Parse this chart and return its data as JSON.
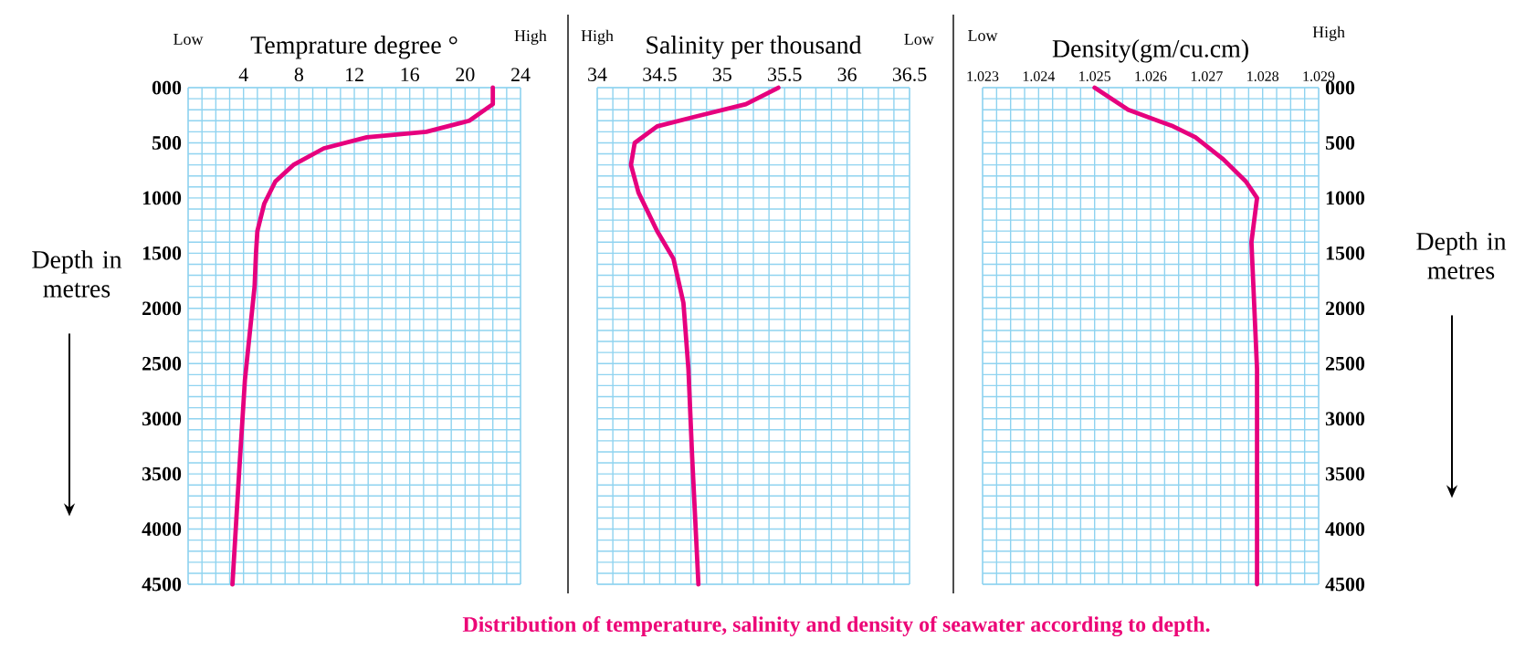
{
  "chart_data": [
    {
      "type": "line",
      "xlabel": "Temprature degree °",
      "ylabel": "Depth in metres",
      "annotations": [
        "Low",
        "High"
      ],
      "xlim": [
        0,
        24
      ],
      "xticks": [
        {
          "value": 0,
          "label": null
        },
        {
          "value": 1,
          "label": null
        },
        {
          "value": 2,
          "label": null
        },
        {
          "value": 3,
          "label": null
        },
        4,
        {
          "value": 5,
          "label": null
        },
        {
          "value": 6,
          "label": null
        },
        {
          "value": 7,
          "label": null
        },
        8,
        {
          "value": 9,
          "label": null
        },
        {
          "value": 10,
          "label": null
        },
        {
          "value": 11,
          "label": null
        },
        12,
        {
          "value": 13,
          "label": null
        },
        {
          "value": 14,
          "label": null
        },
        {
          "value": 15,
          "label": null
        },
        16,
        {
          "value": 17,
          "label": null
        },
        {
          "value": 18,
          "label": null
        },
        {
          "value": 19,
          "label": null
        },
        20,
        {
          "value": 21,
          "label": null
        },
        {
          "value": 22,
          "label": null
        },
        {
          "value": 23,
          "label": null
        },
        24
      ],
      "ylim": [
        4500,
        0
      ],
      "yticks": [
        {
          "value": 0,
          "label": "000"
        },
        {
          "value": 100,
          "label": null
        },
        {
          "value": 200,
          "label": null
        },
        {
          "value": 300,
          "label": null
        },
        {
          "value": 400,
          "label": null
        },
        500,
        {
          "value": 600,
          "label": null
        },
        {
          "value": 700,
          "label": null
        },
        {
          "value": 800,
          "label": null
        },
        {
          "value": 900,
          "label": null
        },
        1000,
        {
          "value": 1100,
          "label": null
        },
        {
          "value": 1200,
          "label": null
        },
        {
          "value": 1300,
          "label": null
        },
        {
          "value": 1400,
          "label": null
        },
        1500,
        {
          "value": 1600,
          "label": null
        },
        {
          "value": 1700,
          "label": null
        },
        {
          "value": 1800,
          "label": null
        },
        {
          "value": 1900,
          "label": null
        },
        2000,
        {
          "value": 2100,
          "label": null
        },
        {
          "value": 2200,
          "label": null
        },
        {
          "value": 2300,
          "label": null
        },
        {
          "value": 2400,
          "label": null
        },
        2500,
        {
          "value": 2600,
          "label": null
        },
        {
          "value": 2700,
          "label": null
        },
        {
          "value": 2800,
          "label": null
        },
        {
          "value": 2900,
          "label": null
        },
        3000,
        {
          "value": 3100,
          "label": null
        },
        {
          "value": 3200,
          "label": null
        },
        {
          "value": 3300,
          "label": null
        },
        {
          "value": 3400,
          "label": null
        },
        3500,
        {
          "value": 3600,
          "label": null
        },
        {
          "value": 3700,
          "label": null
        },
        {
          "value": 3800,
          "label": null
        },
        {
          "value": 3900,
          "label": null
        },
        4000,
        {
          "value": 4100,
          "label": null
        },
        {
          "value": 4200,
          "label": null
        },
        {
          "value": 4300,
          "label": null
        },
        {
          "value": 4400,
          "label": null
        },
        4500
      ],
      "grid": true,
      "series": [
        {
          "color": "#e6007e",
          "x": [
            22.0,
            22.0,
            20.3,
            17.2,
            12.9,
            9.8,
            7.6,
            6.3,
            5.5,
            5.0,
            4.9,
            4.8,
            4.1,
            3.7,
            3.2
          ],
          "values": [
            0,
            150,
            300,
            400,
            450,
            550,
            700,
            850,
            1050,
            1300,
            1500,
            1800,
            2650,
            3450,
            4500
          ]
        }
      ]
    },
    {
      "type": "line",
      "xlabel": "Salinity per thousand",
      "annotations": [
        "High",
        "Low",
        "Distribution of temperature, salinity and density of seawater according to depth."
      ],
      "xlim": [
        34,
        36.5
      ],
      "xticks": [
        34,
        {
          "value": 34.125,
          "label": null
        },
        {
          "value": 34.25,
          "label": null
        },
        {
          "value": 34.375,
          "label": null
        },
        34.5,
        {
          "value": 34.625,
          "label": null
        },
        {
          "value": 34.75,
          "label": null
        },
        {
          "value": 34.875,
          "label": null
        },
        35,
        {
          "value": 35.125,
          "label": null
        },
        {
          "value": 35.25,
          "label": null
        },
        {
          "value": 35.375,
          "label": null
        },
        35.5,
        {
          "value": 35.625,
          "label": null
        },
        {
          "value": 35.75,
          "label": null
        },
        {
          "value": 35.875,
          "label": null
        },
        36,
        {
          "value": 36.125,
          "label": null
        },
        {
          "value": 36.25,
          "label": null
        },
        {
          "value": 36.375,
          "label": null
        },
        36.5
      ],
      "ylim": [
        4500,
        0
      ],
      "yticks": [
        0,
        {
          "value": 100,
          "label": null
        },
        {
          "value": 200,
          "label": null
        },
        {
          "value": 300,
          "label": null
        },
        {
          "value": 400,
          "label": null
        },
        500,
        {
          "value": 600,
          "label": null
        },
        {
          "value": 700,
          "label": null
        },
        {
          "value": 800,
          "label": null
        },
        {
          "value": 900,
          "label": null
        },
        1000,
        {
          "value": 1100,
          "label": null
        },
        {
          "value": 1200,
          "label": null
        },
        {
          "value": 1300,
          "label": null
        },
        {
          "value": 1400,
          "label": null
        },
        1500,
        {
          "value": 1600,
          "label": null
        },
        {
          "value": 1700,
          "label": null
        },
        {
          "value": 1800,
          "label": null
        },
        {
          "value": 1900,
          "label": null
        },
        2000,
        {
          "value": 2100,
          "label": null
        },
        {
          "value": 2200,
          "label": null
        },
        {
          "value": 2300,
          "label": null
        },
        {
          "value": 2400,
          "label": null
        },
        2500,
        {
          "value": 2600,
          "label": null
        },
        {
          "value": 2700,
          "label": null
        },
        {
          "value": 2800,
          "label": null
        },
        {
          "value": 2900,
          "label": null
        },
        3000,
        {
          "value": 3100,
          "label": null
        },
        {
          "value": 3200,
          "label": null
        },
        {
          "value": 3300,
          "label": null
        },
        {
          "value": 3400,
          "label": null
        },
        3500,
        {
          "value": 3600,
          "label": null
        },
        {
          "value": 3700,
          "label": null
        },
        {
          "value": 3800,
          "label": null
        },
        {
          "value": 3900,
          "label": null
        },
        4000,
        {
          "value": 4100,
          "label": null
        },
        {
          "value": 4200,
          "label": null
        },
        {
          "value": 4300,
          "label": null
        },
        {
          "value": 4400,
          "label": null
        },
        4500
      ],
      "tick_labels": "x",
      "grid": true,
      "series": [
        {
          "color": "#e6007e",
          "x": [
            35.45,
            35.19,
            34.83,
            34.48,
            34.3,
            34.27,
            34.33,
            34.48,
            34.61,
            34.69,
            34.73,
            34.76,
            34.81
          ],
          "values": [
            0,
            150,
            250,
            350,
            500,
            700,
            950,
            1300,
            1550,
            1950,
            2550,
            3350,
            4500
          ]
        }
      ]
    },
    {
      "type": "line",
      "xlabel": "Density(gm/cu.cm)",
      "ylabel": "Depth in metres",
      "annotations": [
        "Low",
        "High"
      ],
      "xlim": [
        1.023,
        1.029
      ],
      "xticks": [
        1.023,
        {
          "value": 1.02325,
          "label": null
        },
        {
          "value": 1.0235,
          "label": null
        },
        {
          "value": 1.02375,
          "label": null
        },
        1.024,
        {
          "value": 1.02425,
          "label": null
        },
        {
          "value": 1.0245,
          "label": null
        },
        {
          "value": 1.02475,
          "label": null
        },
        1.025,
        {
          "value": 1.02525,
          "label": null
        },
        {
          "value": 1.0255,
          "label": null
        },
        {
          "value": 1.02575,
          "label": null
        },
        1.026,
        {
          "value": 1.02625,
          "label": null
        },
        {
          "value": 1.0265,
          "label": null
        },
        {
          "value": 1.02675,
          "label": null
        },
        1.027,
        {
          "value": 1.02725,
          "label": null
        },
        {
          "value": 1.0275,
          "label": null
        },
        {
          "value": 1.02775,
          "label": null
        },
        1.028,
        {
          "value": 1.02825,
          "label": null
        },
        {
          "value": 1.0285,
          "label": null
        },
        {
          "value": 1.02875,
          "label": null
        },
        1.029
      ],
      "ylim": [
        4500,
        0
      ],
      "yticks": [
        {
          "value": 0,
          "label": "000"
        },
        {
          "value": 100,
          "label": null
        },
        {
          "value": 200,
          "label": null
        },
        {
          "value": 300,
          "label": null
        },
        {
          "value": 400,
          "label": null
        },
        500,
        {
          "value": 600,
          "label": null
        },
        {
          "value": 700,
          "label": null
        },
        {
          "value": 800,
          "label": null
        },
        {
          "value": 900,
          "label": null
        },
        1000,
        {
          "value": 1100,
          "label": null
        },
        {
          "value": 1200,
          "label": null
        },
        {
          "value": 1300,
          "label": null
        },
        {
          "value": 1400,
          "label": null
        },
        1500,
        {
          "value": 1600,
          "label": null
        },
        {
          "value": 1700,
          "label": null
        },
        {
          "value": 1800,
          "label": null
        },
        {
          "value": 1900,
          "label": null
        },
        2000,
        {
          "value": 2100,
          "label": null
        },
        {
          "value": 2200,
          "label": null
        },
        {
          "value": 2300,
          "label": null
        },
        {
          "value": 2400,
          "label": null
        },
        2500,
        {
          "value": 2600,
          "label": null
        },
        {
          "value": 2700,
          "label": null
        },
        {
          "value": 2800,
          "label": null
        },
        {
          "value": 2900,
          "label": null
        },
        3000,
        {
          "value": 3100,
          "label": null
        },
        {
          "value": 3200,
          "label": null
        },
        {
          "value": 3300,
          "label": null
        },
        {
          "value": 3400,
          "label": null
        },
        3500,
        {
          "value": 3600,
          "label": null
        },
        {
          "value": 3700,
          "label": null
        },
        {
          "value": 3800,
          "label": null
        },
        {
          "value": 3900,
          "label": null
        },
        4000,
        {
          "value": 4100,
          "label": null
        },
        {
          "value": 4200,
          "label": null
        },
        {
          "value": 4300,
          "label": null
        },
        {
          "value": 4400,
          "label": null
        },
        4500
      ],
      "grid": true,
      "series": [
        {
          "color": "#e6007e",
          "x": [
            1.025,
            1.0256,
            1.0264,
            1.0268,
            1.0273,
            1.0277,
            1.0279,
            1.0278,
            1.0279,
            1.0279
          ],
          "values": [
            0,
            200,
            350,
            450,
            650,
            850,
            1000,
            1400,
            2550,
            4500
          ]
        }
      ]
    }
  ]
}
